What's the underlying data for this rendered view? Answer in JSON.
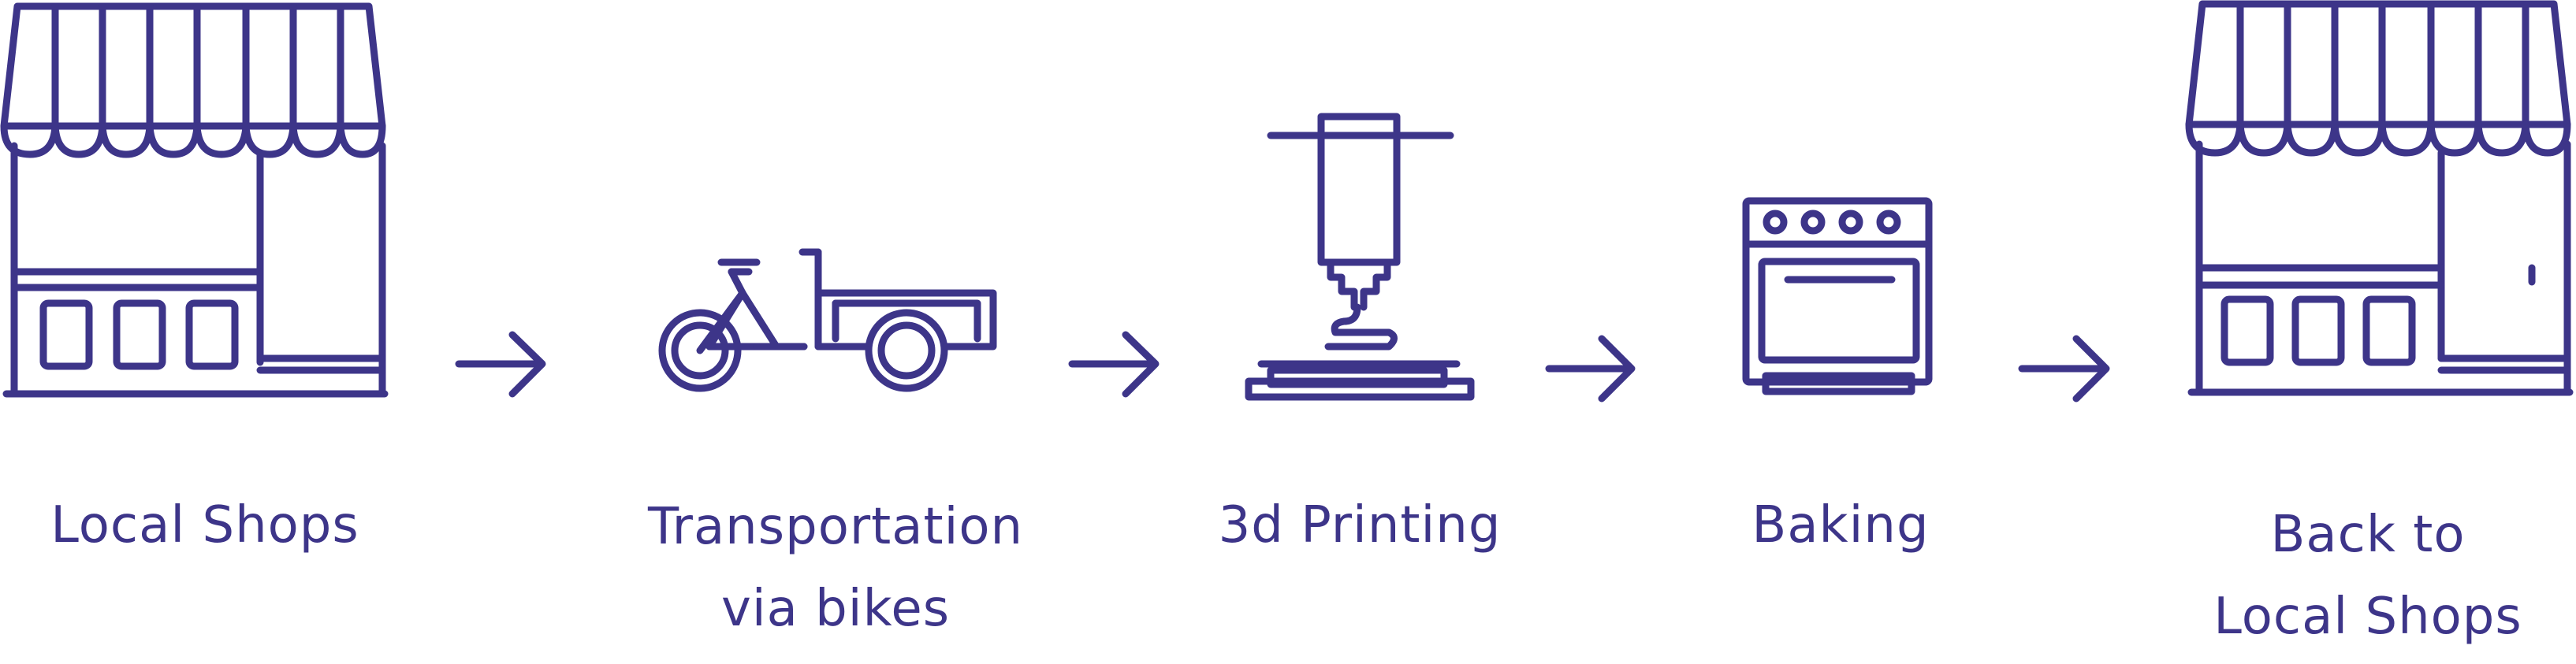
{
  "colors": {
    "ink": "#3d3589",
    "background": "#ffffff"
  },
  "steps": [
    {
      "icon": "storefront-icon",
      "label": "Local Shops"
    },
    {
      "icon": "cargo-bike-icon",
      "label_lines": [
        "Transportation",
        "via bikes"
      ]
    },
    {
      "icon": "3d-printer-icon",
      "label": "3d Printing"
    },
    {
      "icon": "oven-icon",
      "label": "Baking"
    },
    {
      "icon": "storefront-icon",
      "label_lines": [
        "Back to",
        "Local Shops"
      ]
    }
  ],
  "connector_icon": "arrow-right-icon"
}
